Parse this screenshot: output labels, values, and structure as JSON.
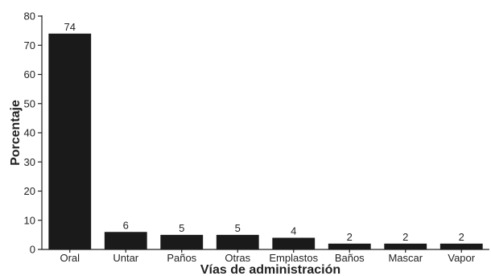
{
  "chart_data": {
    "type": "bar",
    "categories": [
      "Oral",
      "Untar",
      "Paños",
      "Otras",
      "Emplastos",
      "Baños",
      "Mascar",
      "Vapor"
    ],
    "values": [
      74,
      6,
      5,
      5,
      4,
      2,
      2,
      2
    ],
    "data_labels": [
      "74",
      "6",
      "5",
      "5",
      "4",
      "2",
      "2",
      "2"
    ],
    "xlabel": "Vías de administración",
    "ylabel": "Porcentaje",
    "ylim": [
      0,
      80
    ],
    "yticks": [
      0,
      10,
      20,
      30,
      40,
      50,
      60,
      70,
      80
    ],
    "bar_color": "#1a1a1a",
    "grid": false,
    "legend": "none"
  }
}
